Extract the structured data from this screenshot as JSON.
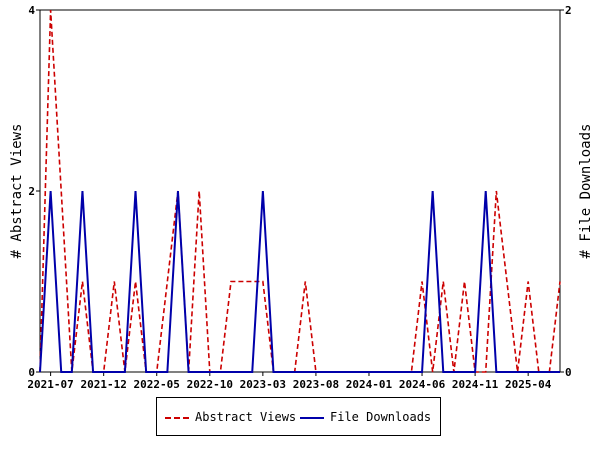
{
  "chart_data": {
    "type": "line",
    "x": [
      "2021-06",
      "2021-07",
      "2021-08",
      "2021-09",
      "2021-10",
      "2021-11",
      "2021-12",
      "2022-01",
      "2022-02",
      "2022-03",
      "2022-04",
      "2022-05",
      "2022-06",
      "2022-07",
      "2022-08",
      "2022-09",
      "2022-10",
      "2022-11",
      "2022-12",
      "2023-01",
      "2023-02",
      "2023-03",
      "2023-04",
      "2023-05",
      "2023-06",
      "2023-07",
      "2023-08",
      "2023-09",
      "2023-10",
      "2023-11",
      "2023-12",
      "2024-01",
      "2024-02",
      "2024-03",
      "2024-04",
      "2024-05",
      "2024-06",
      "2024-07",
      "2024-08",
      "2024-09",
      "2024-10",
      "2024-11",
      "2024-12",
      "2025-01",
      "2025-02",
      "2025-03",
      "2025-04",
      "2025-05",
      "2025-06",
      "2025-07"
    ],
    "x_tick_labels": [
      "2021-07",
      "2021-12",
      "2022-05",
      "2022-10",
      "2023-03",
      "2023-08",
      "2024-01",
      "2024-06",
      "2024-11",
      "2025-04"
    ],
    "series": [
      {
        "name": "Abstract Views",
        "axis": "left",
        "color": "#cc0000",
        "dash": true,
        "values": [
          0,
          4,
          2,
          0,
          1,
          0,
          0,
          1,
          0,
          1,
          0,
          0,
          1,
          2,
          0,
          2,
          0,
          0,
          1,
          1,
          1,
          1,
          0,
          0,
          0,
          1,
          0,
          0,
          0,
          0,
          0,
          0,
          0,
          0,
          0,
          0,
          1,
          0,
          1,
          0,
          1,
          0,
          0,
          2,
          1,
          0,
          1,
          0,
          0,
          1
        ]
      },
      {
        "name": "File Downloads",
        "axis": "right",
        "color": "#0000aa",
        "dash": false,
        "values": [
          0,
          1,
          0,
          0,
          1,
          0,
          0,
          0,
          0,
          1,
          0,
          0,
          0,
          1,
          0,
          0,
          0,
          0,
          0,
          0,
          0,
          1,
          0,
          0,
          0,
          0,
          0,
          0,
          0,
          0,
          0,
          0,
          0,
          0,
          0,
          0,
          0,
          1,
          0,
          0,
          0,
          0,
          1,
          0,
          0,
          0,
          0,
          0,
          0,
          0
        ]
      }
    ],
    "ylabel_left": "# Abstract Views",
    "ylabel_right": "# File Downloads",
    "ylim_left": [
      0,
      4
    ],
    "ylim_right": [
      0,
      2
    ],
    "yticks_left": [
      0,
      2,
      4
    ],
    "yticks_right": [
      0,
      2
    ],
    "legend": [
      "Abstract Views",
      "File Downloads"
    ],
    "legend_position": "bottom-center",
    "grid": false
  }
}
